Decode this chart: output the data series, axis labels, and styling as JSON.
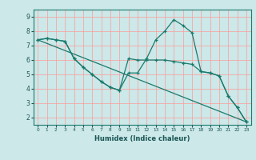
{
  "xlabel": "Humidex (Indice chaleur)",
  "bg_color": "#cce8e8",
  "grid_color": "#ff9999",
  "line_color": "#1a7a6e",
  "xlim": [
    -0.5,
    23.5
  ],
  "ylim": [
    1.5,
    9.5
  ],
  "yticks": [
    2,
    3,
    4,
    5,
    6,
    7,
    8,
    9
  ],
  "xticks": [
    0,
    1,
    2,
    3,
    4,
    5,
    6,
    7,
    8,
    9,
    10,
    11,
    12,
    13,
    14,
    15,
    16,
    17,
    18,
    19,
    20,
    21,
    22,
    23
  ],
  "line1": {
    "x": [
      0,
      1,
      2,
      3,
      4,
      5,
      6,
      7,
      8,
      9,
      10,
      11,
      12,
      13,
      14,
      15,
      16,
      17,
      18,
      19,
      20,
      21,
      22,
      23
    ],
    "y": [
      7.4,
      7.5,
      7.4,
      7.3,
      6.1,
      5.5,
      5.0,
      4.5,
      4.1,
      3.9,
      5.1,
      5.1,
      6.1,
      7.4,
      8.0,
      8.8,
      8.4,
      7.9,
      5.2,
      5.1,
      4.9,
      3.5,
      2.7,
      1.7
    ]
  },
  "line2": {
    "x": [
      0,
      1,
      2,
      3,
      4,
      5,
      6,
      7,
      8,
      9,
      10,
      11,
      12,
      13,
      14,
      15,
      16,
      17,
      18,
      19,
      20,
      21,
      22,
      23
    ],
    "y": [
      7.4,
      7.5,
      7.4,
      7.3,
      6.1,
      5.5,
      5.0,
      4.5,
      4.1,
      3.9,
      6.1,
      6.0,
      6.0,
      6.0,
      6.0,
      5.9,
      5.8,
      5.7,
      5.2,
      5.1,
      4.9,
      3.5,
      2.7,
      1.7
    ]
  },
  "line3": {
    "x": [
      0,
      23
    ],
    "y": [
      7.4,
      1.7
    ]
  }
}
